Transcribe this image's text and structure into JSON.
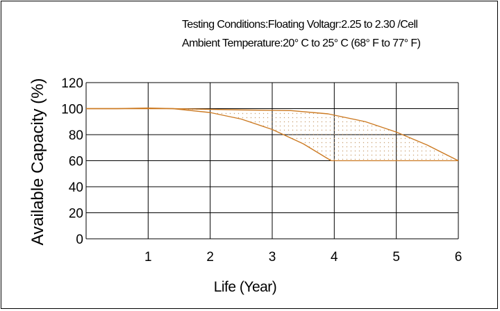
{
  "conditions": {
    "line1": "Testing Conditions:Floating Voltagr:2.25 to 2.30  /Cell",
    "line2": "Ambient Temperature:20° C to 25° C (68° F to 77° F)"
  },
  "chart_data": {
    "type": "area",
    "xlabel": "Life (Year)",
    "ylabel": "Available Capacity (%)",
    "xlim": [
      0,
      6
    ],
    "ylim": [
      0,
      120
    ],
    "x_ticks": [
      "1",
      "2",
      "3",
      "4",
      "5",
      "6"
    ],
    "y_ticks": [
      "0",
      "20",
      "40",
      "60",
      "80",
      "100",
      "120"
    ],
    "grid": true,
    "colors": {
      "curve": "#cc7a22",
      "fill_dots": "#c9a070",
      "grid": "#000000"
    },
    "series": [
      {
        "x": [
          0,
          0.5,
          1.0,
          1.4,
          2.0,
          2.5,
          3.0,
          3.5,
          3.95
        ],
        "y": [
          100,
          100,
          100.5,
          100,
          97,
          92,
          84,
          73,
          60
        ]
      },
      {
        "x": [
          0,
          1.4,
          2.5,
          3.3,
          3.9,
          4.5,
          5.0,
          5.5,
          6.0
        ],
        "y": [
          100,
          100,
          99,
          98.5,
          96,
          90,
          82,
          72,
          60
        ]
      }
    ],
    "band": {
      "between_series": [
        0,
        1
      ],
      "y_floor": 60,
      "fill": "dotted"
    }
  }
}
